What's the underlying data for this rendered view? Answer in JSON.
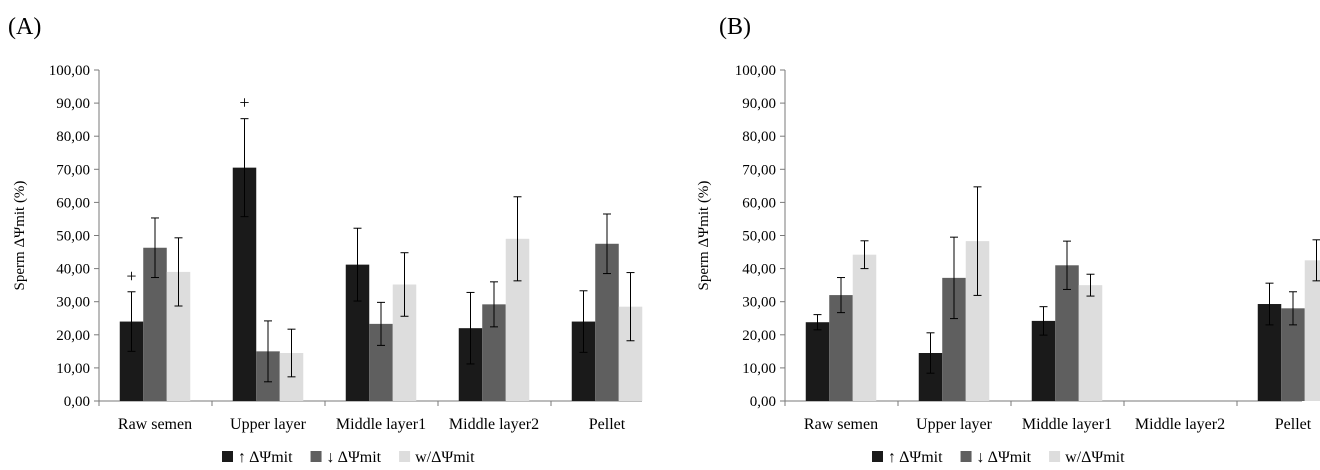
{
  "chart_data": [
    {
      "panel_label": "(A)",
      "type": "bar",
      "ylabel": "Sperm  ΔΨmit (%)",
      "ylim": [
        0,
        100
      ],
      "yticks": [
        "0,00",
        "10,00",
        "20,00",
        "30,00",
        "40,00",
        "50,00",
        "60,00",
        "70,00",
        "80,00",
        "90,00",
        "100,00"
      ],
      "categories": [
        "Raw semen",
        "Upper layer",
        "Middle layer1",
        "Middle layer2",
        "Pellet"
      ],
      "series": [
        {
          "name": "↑ ΔΨmit",
          "color": "#1a1a1a",
          "values": [
            24,
            70.5,
            41.2,
            22,
            24
          ],
          "errors": [
            9,
            14.8,
            11,
            10.8,
            9.3
          ]
        },
        {
          "name": "↓ ΔΨmit",
          "color": "#5f5f5f",
          "values": [
            46.3,
            15,
            23.3,
            29.2,
            47.5
          ],
          "errors": [
            9,
            9.2,
            6.5,
            6.8,
            9
          ]
        },
        {
          "name": "w/ΔΨmit",
          "color": "#dddddd",
          "values": [
            39,
            14.5,
            35.2,
            49,
            28.5
          ],
          "errors": [
            10.3,
            7.2,
            9.6,
            12.7,
            10.3
          ]
        }
      ],
      "annotations": [
        {
          "text": "+",
          "category": "Raw semen",
          "series": "↑ ΔΨmit"
        },
        {
          "text": "+",
          "category": "Upper layer",
          "series": "↑ ΔΨmit"
        }
      ],
      "legend_position": "bottom"
    },
    {
      "panel_label": "(B)",
      "type": "bar",
      "ylabel": "Sperm  ΔΨmit (%)",
      "ylim": [
        0,
        100
      ],
      "yticks": [
        "0,00",
        "10,00",
        "20,00",
        "30,00",
        "40,00",
        "50,00",
        "60,00",
        "70,00",
        "80,00",
        "90,00",
        "100,00"
      ],
      "categories": [
        "Raw semen",
        "Upper layer",
        "Middle layer1",
        "Middle layer2",
        "Pellet"
      ],
      "series": [
        {
          "name": "↑ ΔΨmit",
          "color": "#1a1a1a",
          "values": [
            23.8,
            14.5,
            24.2,
            null,
            29.3
          ],
          "errors": [
            2.3,
            6.1,
            4.3,
            null,
            6.3
          ]
        },
        {
          "name": "↓ ΔΨmit",
          "color": "#5f5f5f",
          "values": [
            32,
            37.2,
            41,
            null,
            28
          ],
          "errors": [
            5.3,
            12.3,
            7.3,
            null,
            5
          ]
        },
        {
          "name": "w/ΔΨmit",
          "color": "#dddddd",
          "values": [
            44.2,
            48.3,
            35,
            null,
            42.5
          ],
          "errors": [
            4.2,
            16.4,
            3.3,
            null,
            6.2
          ]
        }
      ],
      "annotations": [],
      "legend_position": "bottom"
    }
  ]
}
